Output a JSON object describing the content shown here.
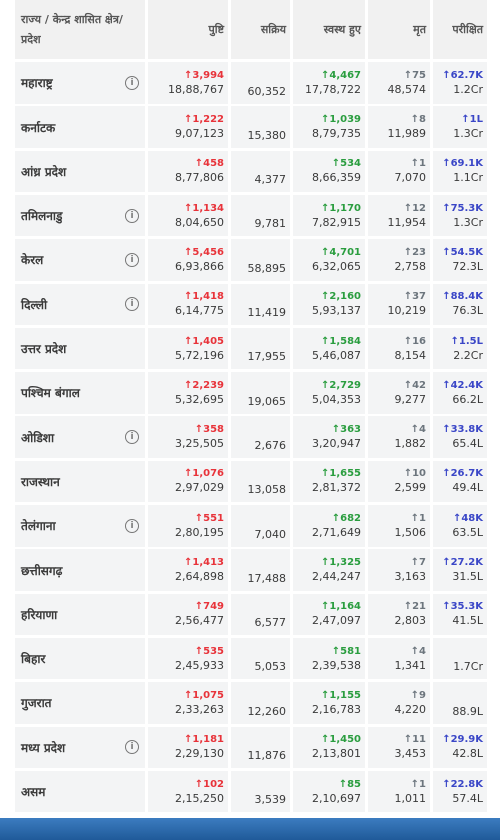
{
  "table": {
    "header": [
      "राज्य / केन्द्र शासित क्षेत्र/ प्रदेश",
      "पुष्टि",
      "सक्रिय",
      "स्वस्थ हुए",
      "मृत",
      "परीक्षित"
    ],
    "rows": [
      {
        "state": "महाराष्ट्र",
        "info": true,
        "confirmed_delta": "↑3,994",
        "confirmed": "18,88,767",
        "active": "60,352",
        "recovered_delta": "↑4,467",
        "recovered": "17,78,722",
        "deaths_delta": "↑75",
        "deaths": "48,574",
        "tested_delta": "↑62.7K",
        "tested": "1.2Cr"
      },
      {
        "state": "कर्नाटक",
        "info": false,
        "confirmed_delta": "↑1,222",
        "confirmed": "9,07,123",
        "active": "15,380",
        "recovered_delta": "↑1,039",
        "recovered": "8,79,735",
        "deaths_delta": "↑8",
        "deaths": "11,989",
        "tested_delta": "↑1L",
        "tested": "1.3Cr"
      },
      {
        "state": "आंध्र प्रदेश",
        "info": false,
        "confirmed_delta": "↑458",
        "confirmed": "8,77,806",
        "active": "4,377",
        "recovered_delta": "↑534",
        "recovered": "8,66,359",
        "deaths_delta": "↑1",
        "deaths": "7,070",
        "tested_delta": "↑69.1K",
        "tested": "1.1Cr"
      },
      {
        "state": "तमिलनाडु",
        "info": true,
        "confirmed_delta": "↑1,134",
        "confirmed": "8,04,650",
        "active": "9,781",
        "recovered_delta": "↑1,170",
        "recovered": "7,82,915",
        "deaths_delta": "↑12",
        "deaths": "11,954",
        "tested_delta": "↑75.3K",
        "tested": "1.3Cr"
      },
      {
        "state": "केरल",
        "info": true,
        "confirmed_delta": "↑5,456",
        "confirmed": "6,93,866",
        "active": "58,895",
        "recovered_delta": "↑4,701",
        "recovered": "6,32,065",
        "deaths_delta": "↑23",
        "deaths": "2,758",
        "tested_delta": "↑54.5K",
        "tested": "72.3L"
      },
      {
        "state": "दिल्ली",
        "info": true,
        "confirmed_delta": "↑1,418",
        "confirmed": "6,14,775",
        "active": "11,419",
        "recovered_delta": "↑2,160",
        "recovered": "5,93,137",
        "deaths_delta": "↑37",
        "deaths": "10,219",
        "tested_delta": "↑88.4K",
        "tested": "76.3L"
      },
      {
        "state": "उत्तर प्रदेश",
        "info": false,
        "confirmed_delta": "↑1,405",
        "confirmed": "5,72,196",
        "active": "17,955",
        "recovered_delta": "↑1,584",
        "recovered": "5,46,087",
        "deaths_delta": "↑16",
        "deaths": "8,154",
        "tested_delta": "↑1.5L",
        "tested": "2.2Cr"
      },
      {
        "state": "पश्चिम बंगाल",
        "info": false,
        "confirmed_delta": "↑2,239",
        "confirmed": "5,32,695",
        "active": "19,065",
        "recovered_delta": "↑2,729",
        "recovered": "5,04,353",
        "deaths_delta": "↑42",
        "deaths": "9,277",
        "tested_delta": "↑42.4K",
        "tested": "66.2L"
      },
      {
        "state": "ओडिशा",
        "info": true,
        "confirmed_delta": "↑358",
        "confirmed": "3,25,505",
        "active": "2,676",
        "recovered_delta": "↑363",
        "recovered": "3,20,947",
        "deaths_delta": "↑4",
        "deaths": "1,882",
        "tested_delta": "↑33.8K",
        "tested": "65.4L"
      },
      {
        "state": "राजस्थान",
        "info": false,
        "confirmed_delta": "↑1,076",
        "confirmed": "2,97,029",
        "active": "13,058",
        "recovered_delta": "↑1,655",
        "recovered": "2,81,372",
        "deaths_delta": "↑10",
        "deaths": "2,599",
        "tested_delta": "↑26.7K",
        "tested": "49.4L"
      },
      {
        "state": "तेलंगाना",
        "info": true,
        "confirmed_delta": "↑551",
        "confirmed": "2,80,195",
        "active": "7,040",
        "recovered_delta": "↑682",
        "recovered": "2,71,649",
        "deaths_delta": "↑1",
        "deaths": "1,506",
        "tested_delta": "↑48K",
        "tested": "63.5L"
      },
      {
        "state": "छत्तीसगढ़",
        "info": false,
        "confirmed_delta": "↑1,413",
        "confirmed": "2,64,898",
        "active": "17,488",
        "recovered_delta": "↑1,325",
        "recovered": "2,44,247",
        "deaths_delta": "↑7",
        "deaths": "3,163",
        "tested_delta": "↑27.2K",
        "tested": "31.5L"
      },
      {
        "state": "हरियाणा",
        "info": false,
        "confirmed_delta": "↑749",
        "confirmed": "2,56,477",
        "active": "6,577",
        "recovered_delta": "↑1,164",
        "recovered": "2,47,097",
        "deaths_delta": "↑21",
        "deaths": "2,803",
        "tested_delta": "↑35.3K",
        "tested": "41.5L"
      },
      {
        "state": "बिहार",
        "info": false,
        "confirmed_delta": "↑535",
        "confirmed": "2,45,933",
        "active": "5,053",
        "recovered_delta": "↑581",
        "recovered": "2,39,538",
        "deaths_delta": "↑4",
        "deaths": "1,341",
        "tested_delta": null,
        "tested": "1.7Cr"
      },
      {
        "state": "गुजरात",
        "info": false,
        "confirmed_delta": "↑1,075",
        "confirmed": "2,33,263",
        "active": "12,260",
        "recovered_delta": "↑1,155",
        "recovered": "2,16,783",
        "deaths_delta": "↑9",
        "deaths": "4,220",
        "tested_delta": null,
        "tested": "88.9L"
      },
      {
        "state": "मध्य प्रदेश",
        "info": true,
        "confirmed_delta": "↑1,181",
        "confirmed": "2,29,130",
        "active": "11,876",
        "recovered_delta": "↑1,450",
        "recovered": "2,13,801",
        "deaths_delta": "↑11",
        "deaths": "3,453",
        "tested_delta": "↑29.9K",
        "tested": "42.8L"
      },
      {
        "state": "असम",
        "info": false,
        "confirmed_delta": "↑102",
        "confirmed": "2,15,250",
        "active": "3,539",
        "recovered_delta": "↑85",
        "recovered": "2,10,697",
        "deaths_delta": "↑1",
        "deaths": "1,011",
        "tested_delta": "↑22.8K",
        "tested": "57.4L"
      }
    ]
  }
}
